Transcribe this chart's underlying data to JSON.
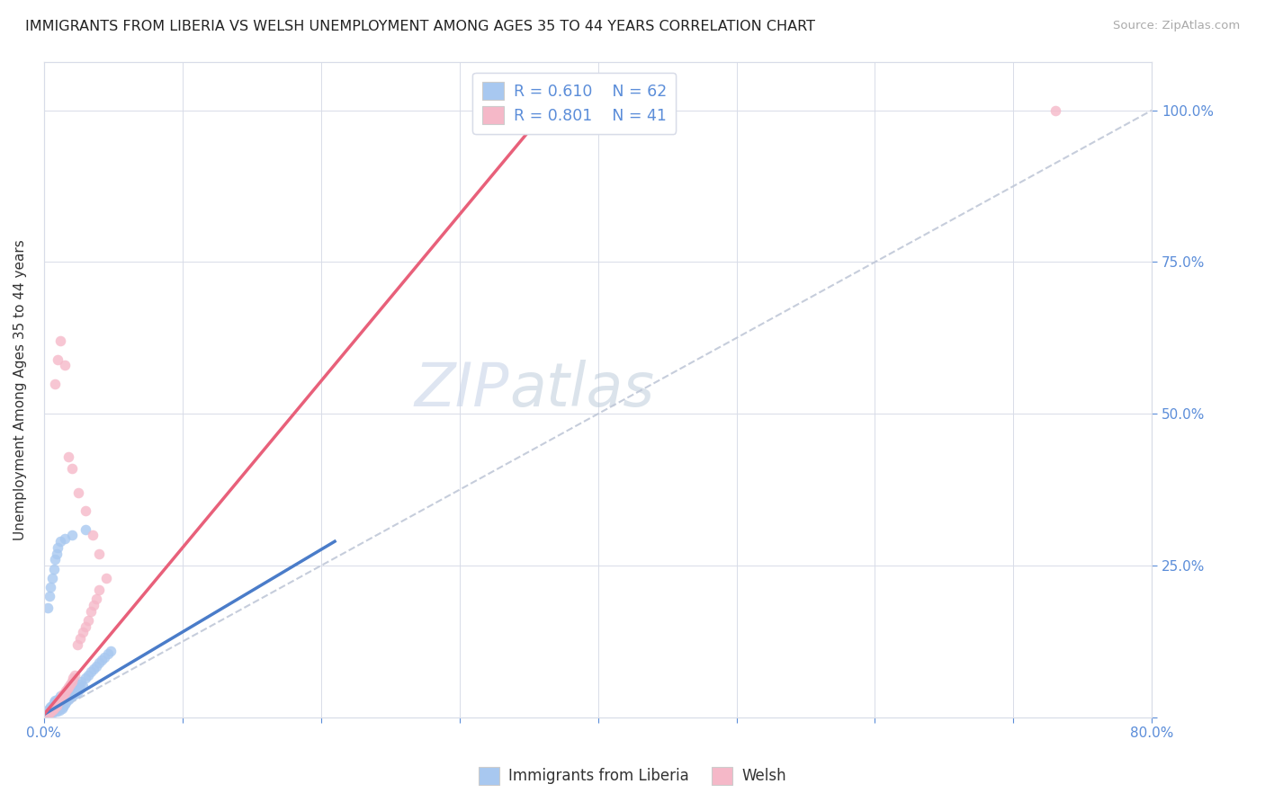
{
  "title": "IMMIGRANTS FROM LIBERIA VS WELSH UNEMPLOYMENT AMONG AGES 35 TO 44 YEARS CORRELATION CHART",
  "source": "Source: ZipAtlas.com",
  "ylabel": "Unemployment Among Ages 35 to 44 years",
  "xmin": 0.0,
  "xmax": 0.8,
  "ymin": 0.0,
  "ymax": 1.08,
  "color_blue": "#a8c8f0",
  "color_pink": "#f5b8c8",
  "color_blue_line": "#4a7cc9",
  "color_pink_line": "#e8607a",
  "color_diag": "#c0c8d8",
  "watermark_zip": "ZIP",
  "watermark_atlas": "atlas",
  "blue_scatter_x": [
    0.002,
    0.003,
    0.003,
    0.004,
    0.004,
    0.005,
    0.005,
    0.006,
    0.006,
    0.007,
    0.007,
    0.008,
    0.008,
    0.009,
    0.009,
    0.01,
    0.01,
    0.011,
    0.011,
    0.012,
    0.012,
    0.013,
    0.013,
    0.014,
    0.014,
    0.015,
    0.015,
    0.016,
    0.017,
    0.018,
    0.019,
    0.02,
    0.021,
    0.022,
    0.023,
    0.024,
    0.025,
    0.026,
    0.027,
    0.028,
    0.03,
    0.032,
    0.034,
    0.036,
    0.038,
    0.04,
    0.042,
    0.044,
    0.046,
    0.048,
    0.003,
    0.004,
    0.005,
    0.006,
    0.007,
    0.008,
    0.009,
    0.01,
    0.012,
    0.015,
    0.02,
    0.03
  ],
  "blue_scatter_y": [
    0.005,
    0.008,
    0.012,
    0.006,
    0.015,
    0.01,
    0.018,
    0.008,
    0.02,
    0.012,
    0.025,
    0.015,
    0.028,
    0.01,
    0.022,
    0.018,
    0.03,
    0.012,
    0.025,
    0.02,
    0.035,
    0.015,
    0.028,
    0.018,
    0.032,
    0.022,
    0.038,
    0.025,
    0.035,
    0.03,
    0.04,
    0.035,
    0.045,
    0.038,
    0.05,
    0.042,
    0.055,
    0.048,
    0.06,
    0.052,
    0.065,
    0.07,
    0.075,
    0.08,
    0.085,
    0.09,
    0.095,
    0.1,
    0.105,
    0.11,
    0.18,
    0.2,
    0.215,
    0.23,
    0.245,
    0.26,
    0.27,
    0.28,
    0.29,
    0.295,
    0.3,
    0.31
  ],
  "pink_scatter_x": [
    0.003,
    0.004,
    0.005,
    0.006,
    0.007,
    0.008,
    0.009,
    0.01,
    0.011,
    0.012,
    0.013,
    0.014,
    0.015,
    0.016,
    0.017,
    0.018,
    0.019,
    0.02,
    0.021,
    0.022,
    0.024,
    0.026,
    0.028,
    0.03,
    0.032,
    0.034,
    0.036,
    0.038,
    0.04,
    0.045,
    0.008,
    0.01,
    0.012,
    0.015,
    0.018,
    0.02,
    0.025,
    0.03,
    0.035,
    0.04,
    0.73
  ],
  "pink_scatter_y": [
    0.005,
    0.008,
    0.01,
    0.012,
    0.015,
    0.018,
    0.02,
    0.025,
    0.028,
    0.03,
    0.035,
    0.038,
    0.04,
    0.045,
    0.048,
    0.05,
    0.055,
    0.06,
    0.065,
    0.07,
    0.12,
    0.13,
    0.14,
    0.15,
    0.16,
    0.175,
    0.185,
    0.195,
    0.21,
    0.23,
    0.55,
    0.59,
    0.62,
    0.58,
    0.43,
    0.41,
    0.37,
    0.34,
    0.3,
    0.27,
    1.0
  ],
  "blue_line_x": [
    0.0,
    0.21
  ],
  "blue_line_y": [
    0.005,
    0.29
  ],
  "pink_line_x": [
    0.0,
    0.37
  ],
  "pink_line_y": [
    0.005,
    1.02
  ],
  "diag_line_x": [
    0.0,
    0.8
  ],
  "diag_line_y": [
    0.0,
    1.0
  ]
}
